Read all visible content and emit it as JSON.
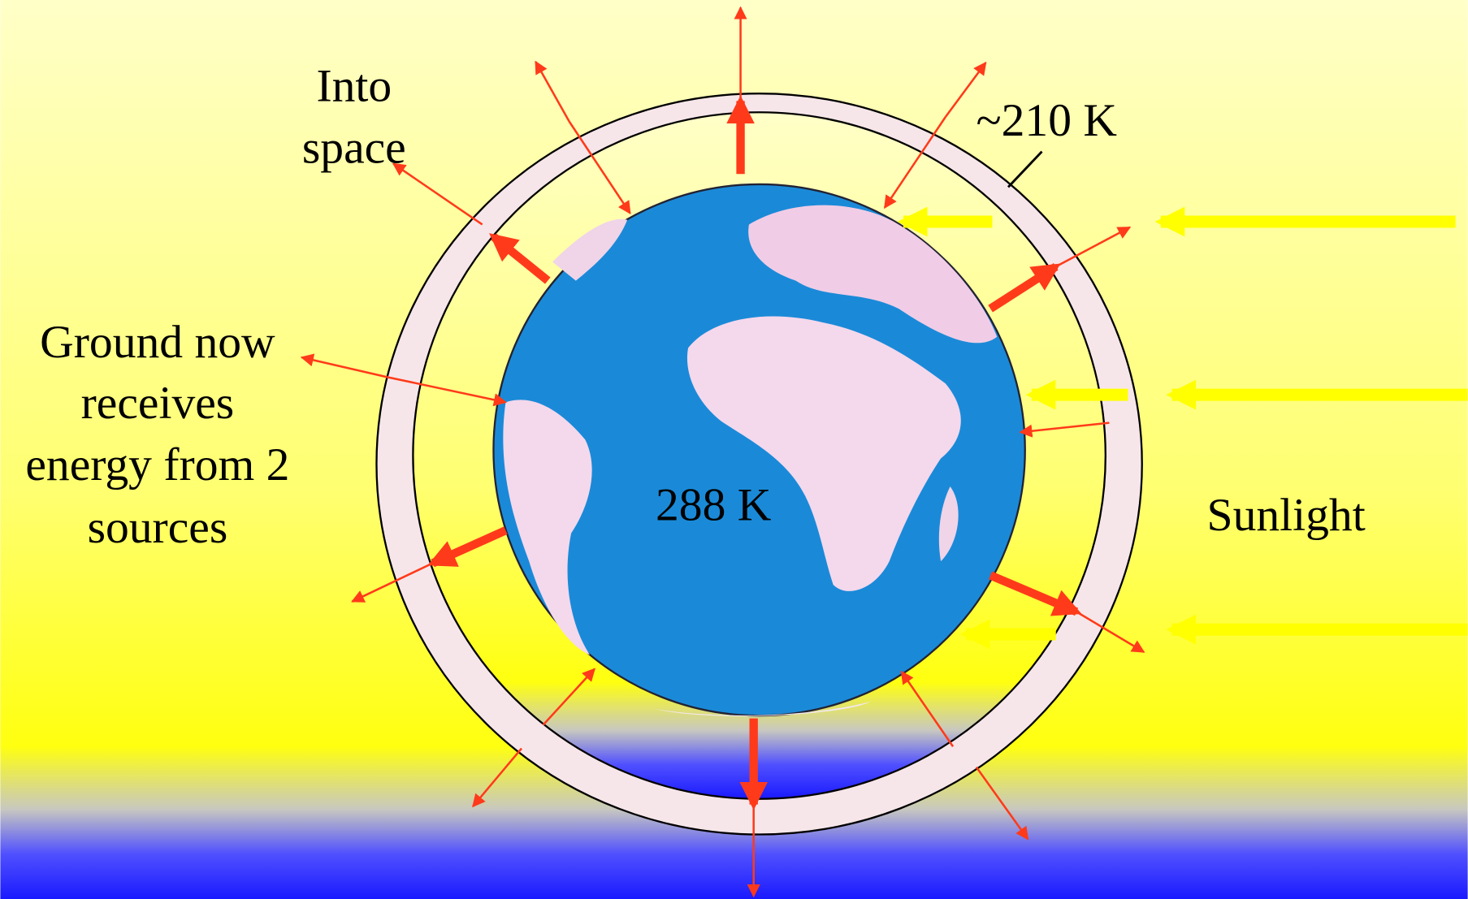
{
  "labels": {
    "into_space": [
      "Into",
      "space"
    ],
    "stratosphere_temp": "~210 K",
    "ground_note": [
      "Ground now",
      "receives",
      "energy from 2",
      "sources"
    ],
    "ground_temp": "288 K",
    "sunlight": "Sunlight"
  }
}
